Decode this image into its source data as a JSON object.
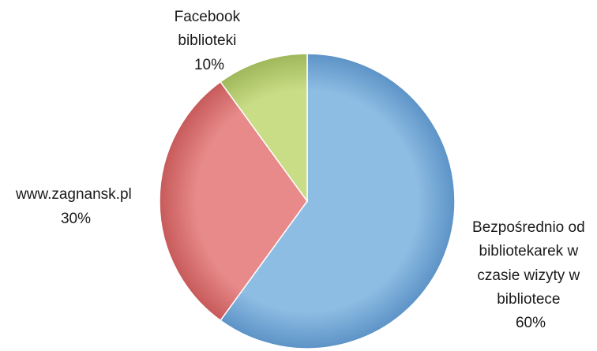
{
  "chart_data": {
    "type": "pie",
    "slices": [
      {
        "label_lines": [
          "Bezpośrednio od",
          "bibliotekarek w",
          "czasie wizyty w",
          "bibliotece"
        ],
        "value": 60,
        "value_label": "60%",
        "color": "#8ebde3",
        "shade": "#5d93c7"
      },
      {
        "label_lines": [
          "www.zagnansk.pl"
        ],
        "value": 30,
        "value_label": "30%",
        "color": "#e88a8a",
        "shade": "#c75a5a"
      },
      {
        "label_lines": [
          "Facebook",
          "biblioteki"
        ],
        "value": 10,
        "value_label": "10%",
        "color": "#c9dd86",
        "shade": "#9fb85a"
      }
    ],
    "start_angle_deg": 0,
    "direction": "clockwise"
  }
}
